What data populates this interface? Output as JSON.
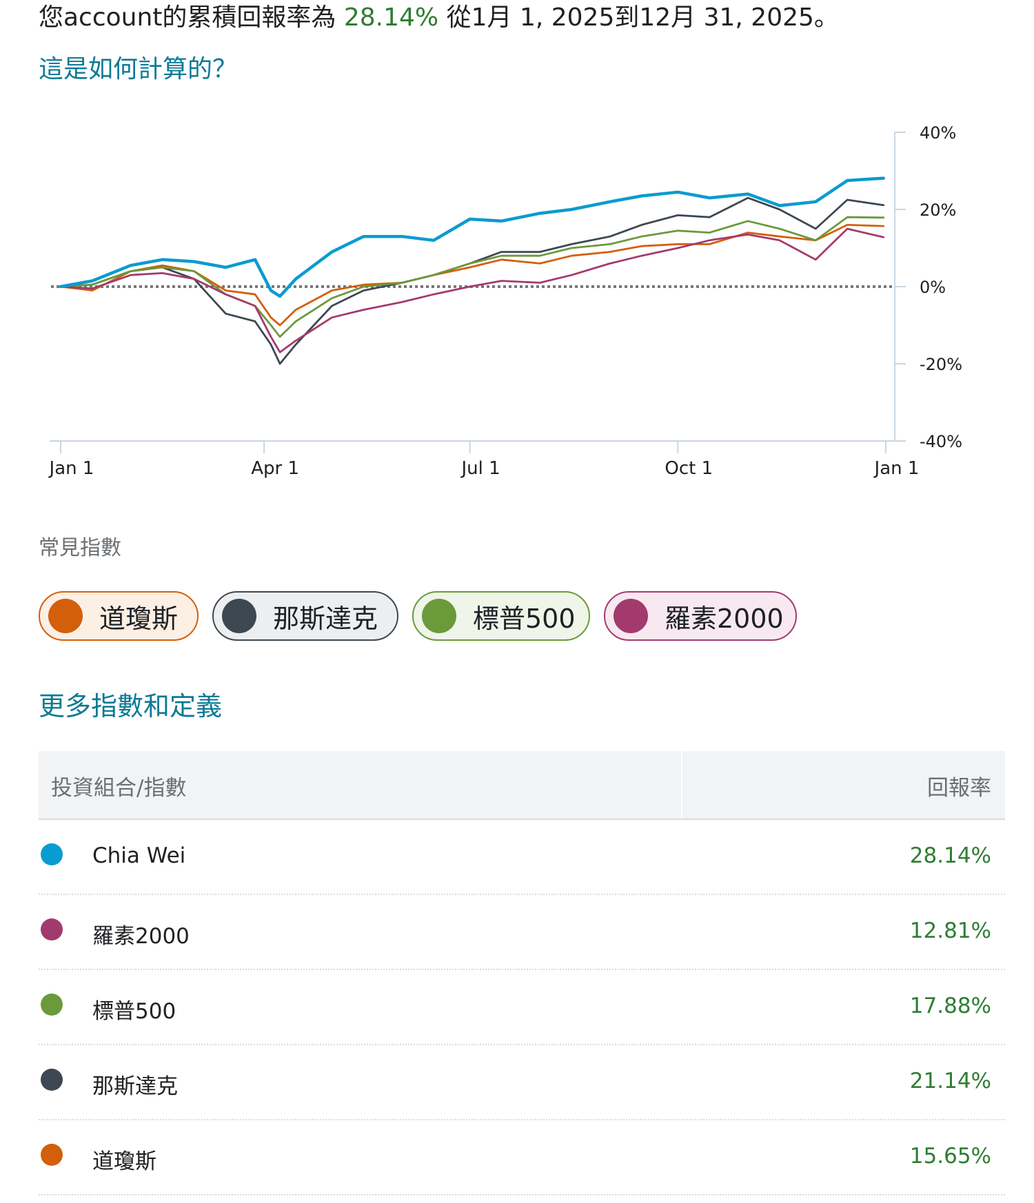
{
  "header": {
    "prefix": "您account的累積回報率為 ",
    "return_value": "28.14%",
    "suffix": " 從1月 1, 2025到12月 31, 2025。",
    "how_link": "這是如何計算的？"
  },
  "indices_section": {
    "label": "常見指數",
    "chips": [
      {
        "label": "道瓊斯",
        "color": "#d35f0a",
        "bg": "#fcefe4"
      },
      {
        "label": "那斯達克",
        "color": "#3d4852",
        "bg": "#eceeef"
      },
      {
        "label": "標普500",
        "color": "#6a9a3a",
        "bg": "#eff5e9"
      },
      {
        "label": "羅素2000",
        "color": "#a33a6e",
        "bg": "#f8e9f0"
      }
    ],
    "more_link": "更多指數和定義"
  },
  "table": {
    "col_name": "投資組合/指數",
    "col_return": "回報率",
    "rows": [
      {
        "name": "Chia Wei",
        "value": "28.14%",
        "color": "#0a9bd0"
      },
      {
        "name": "羅素2000",
        "value": "12.81%",
        "color": "#a33a6e"
      },
      {
        "name": "標普500",
        "value": "17.88%",
        "color": "#6a9a3a"
      },
      {
        "name": "那斯達克",
        "value": "21.14%",
        "color": "#3d4852"
      },
      {
        "name": "道瓊斯",
        "value": "15.65%",
        "color": "#d35f0a"
      }
    ]
  },
  "chart_data": {
    "type": "line",
    "title": "",
    "xlabel": "",
    "ylabel": "",
    "x_ticks": [
      "Jan 1",
      "Apr 1",
      "Jul 1",
      "Oct 1",
      "Jan 1"
    ],
    "y_ticks": [
      "40%",
      "20%",
      "0%",
      "-20%",
      "-40%"
    ],
    "ylim": [
      -40,
      40
    ],
    "x_dates": [
      "2025-01-01",
      "2025-01-15",
      "2025-02-01",
      "2025-02-15",
      "2025-03-01",
      "2025-03-15",
      "2025-03-28",
      "2025-04-04",
      "2025-04-08",
      "2025-04-15",
      "2025-05-01",
      "2025-05-15",
      "2025-06-01",
      "2025-06-15",
      "2025-07-01",
      "2025-07-15",
      "2025-08-01",
      "2025-08-15",
      "2025-09-01",
      "2025-09-15",
      "2025-10-01",
      "2025-10-15",
      "2025-11-01",
      "2025-11-15",
      "2025-12-01",
      "2025-12-15",
      "2025-12-31"
    ],
    "series": [
      {
        "name": "Chia Wei",
        "color": "#0a9bd0",
        "values": [
          0,
          1.5,
          5.5,
          7,
          6.5,
          5,
          7,
          -1,
          -2.5,
          2,
          9,
          13,
          13,
          12,
          17.5,
          17,
          19,
          20,
          22,
          23.5,
          24.5,
          23,
          24,
          21,
          22,
          27.5,
          28.1
        ]
      },
      {
        "name": "羅素2000",
        "color": "#a33a6e",
        "values": [
          0,
          -0.5,
          3,
          3.5,
          2,
          -2,
          -5,
          -13,
          -17,
          -14,
          -8,
          -6,
          -4,
          -2,
          0,
          1.5,
          1,
          3,
          6,
          8,
          10,
          12,
          13.5,
          12,
          7,
          15,
          12.8
        ]
      },
      {
        "name": "標普500",
        "color": "#6a9a3a",
        "values": [
          0,
          0.5,
          4,
          5,
          4,
          -2,
          -5,
          -10,
          -13,
          -9,
          -3,
          0,
          1,
          3,
          6,
          8,
          8,
          10,
          11,
          13,
          14.5,
          14,
          17,
          15,
          12,
          18,
          17.9
        ]
      },
      {
        "name": "那斯達克",
        "color": "#3d4852",
        "values": [
          0,
          0.5,
          4,
          5,
          2,
          -7,
          -9,
          -15,
          -20,
          -15,
          -5,
          -1,
          1,
          3,
          6,
          9,
          9,
          11,
          13,
          16,
          18.5,
          18,
          23,
          20,
          15,
          22.5,
          21.1
        ]
      },
      {
        "name": "道瓊斯",
        "color": "#d35f0a",
        "values": [
          0,
          -1,
          4,
          5.5,
          4,
          -1,
          -2,
          -8,
          -10,
          -6,
          -1,
          0.5,
          1,
          3,
          5,
          7,
          6,
          8,
          9,
          10.5,
          11,
          11,
          14,
          13,
          12,
          16,
          15.7
        ]
      }
    ]
  }
}
